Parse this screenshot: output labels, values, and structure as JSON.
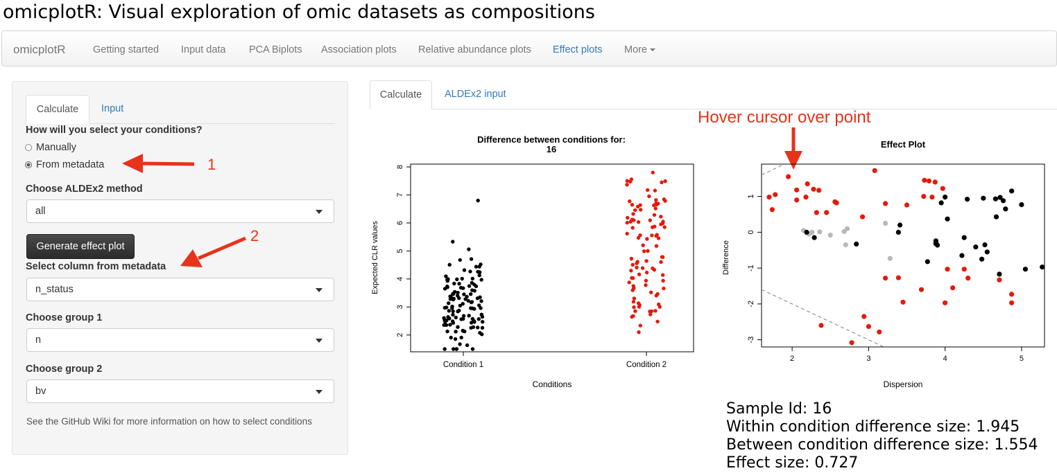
{
  "app": {
    "title": "omicplotR: Visual exploration of omic datasets as compositions"
  },
  "navbar": {
    "brand": "omicplotR",
    "items": [
      {
        "label": "Getting started"
      },
      {
        "label": "Input data"
      },
      {
        "label": "PCA Biplots"
      },
      {
        "label": "Association plots"
      },
      {
        "label": "Relative abundance plots"
      },
      {
        "label": "Effect plots",
        "active": true
      },
      {
        "label": "More"
      }
    ]
  },
  "sidebar": {
    "tabs": [
      {
        "label": "Calculate",
        "active": true
      },
      {
        "label": "Input"
      }
    ],
    "condition_question": "How will you select your conditions?",
    "radio_options": [
      {
        "label": "Manually",
        "checked": false
      },
      {
        "label": "From metadata",
        "checked": true
      }
    ],
    "method": {
      "label": "Choose ALDEx2 method",
      "value": "all"
    },
    "generate_button": "Generate effect plot",
    "metadata_column": {
      "label": "Select column from metadata",
      "value": "n_status"
    },
    "group1": {
      "label": "Choose group 1",
      "value": "n"
    },
    "group2": {
      "label": "Choose group 2",
      "value": "bv"
    },
    "help_text": "See the GitHub Wiki for more information on how to select conditions"
  },
  "main": {
    "tabs": [
      {
        "label": "Calculate",
        "active": true
      },
      {
        "label": "ALDEx2 input"
      }
    ]
  },
  "annotations": {
    "arrow1_label": "1",
    "arrow2_label": "2",
    "hover_note": "Hover cursor over point"
  },
  "colors": {
    "annotation_red": "#e8321a",
    "link_blue": "#337ab7",
    "condition2_red": "#e41a0c",
    "neutral_grey": "#b8b8b8"
  },
  "chart_data": [
    {
      "type": "scatter",
      "title": "Difference between conditions for:",
      "subtitle": "16",
      "xlabel": "Conditions",
      "ylabel": "Expected CLR values",
      "categories": [
        "Condition 1",
        "Condition 2"
      ],
      "ylim": [
        1.4,
        8.1
      ],
      "yticks": [
        2,
        3,
        4,
        5,
        6,
        7,
        8
      ],
      "series": [
        {
          "category": "Condition 1",
          "color": "#000000",
          "n_points": 120,
          "y_range": [
            1.5,
            6.8
          ]
        },
        {
          "category": "Condition 2",
          "color": "#e41a0c",
          "n_points": 100,
          "y_range": [
            2.1,
            7.8
          ]
        }
      ]
    },
    {
      "type": "scatter",
      "title": "Effect Plot",
      "xlabel": "Dispersion",
      "ylabel": "Difference",
      "xlim": [
        1.6,
        5.3
      ],
      "ylim": [
        -3.2,
        1.9
      ],
      "xticks": [
        2,
        3,
        4,
        5
      ],
      "yticks": [
        -3,
        -2,
        -1,
        0,
        1
      ],
      "reference_lines": "dashed y = x and y = -x",
      "series": [
        {
          "name": "red",
          "color": "#e41a0c",
          "points": [
            [
              1.95,
              1.55
            ],
            [
              3.08,
              1.72
            ],
            [
              3.73,
              1.45
            ],
            [
              3.79,
              1.43
            ],
            [
              3.87,
              1.4
            ],
            [
              3.97,
              1.22
            ],
            [
              2.2,
              1.35
            ],
            [
              2.28,
              1.2
            ],
            [
              2.35,
              1.17
            ],
            [
              2.06,
              1.18
            ],
            [
              1.78,
              1.05
            ],
            [
              1.7,
              0.98
            ],
            [
              2.18,
              0.98
            ],
            [
              2.06,
              0.9
            ],
            [
              2.56,
              0.85
            ],
            [
              2.58,
              0.82
            ],
            [
              3.22,
              0.8
            ],
            [
              3.5,
              0.76
            ],
            [
              3.72,
              1.0
            ],
            [
              3.83,
              0.98
            ],
            [
              1.74,
              0.63
            ],
            [
              2.45,
              0.55
            ],
            [
              2.32,
              0.55
            ],
            [
              2.92,
              0.43
            ],
            [
              4.25,
              -1.03
            ],
            [
              4.03,
              -1.03
            ],
            [
              4.3,
              -1.28
            ],
            [
              3.22,
              -1.28
            ],
            [
              3.39,
              -1.27
            ],
            [
              4.1,
              -1.55
            ],
            [
              3.69,
              -1.6
            ],
            [
              4.71,
              -1.33
            ],
            [
              4.87,
              -1.73
            ],
            [
              4.87,
              -1.97
            ],
            [
              4.0,
              -1.97
            ],
            [
              3.45,
              -1.95
            ],
            [
              2.94,
              -2.35
            ],
            [
              2.38,
              -2.6
            ],
            [
              3.0,
              -2.63
            ],
            [
              3.14,
              -2.78
            ],
            [
              2.78,
              -3.08
            ]
          ]
        },
        {
          "name": "black",
          "color": "#000000",
          "points": [
            [
              4.87,
              1.15
            ],
            [
              4.66,
              0.93
            ],
            [
              4.72,
              0.97
            ],
            [
              4.5,
              0.95
            ],
            [
              4.76,
              0.88
            ],
            [
              4.29,
              0.92
            ],
            [
              4.0,
              0.98
            ],
            [
              5.0,
              0.77
            ],
            [
              4.79,
              0.65
            ],
            [
              3.95,
              0.82
            ],
            [
              4.67,
              0.43
            ],
            [
              4.03,
              0.37
            ],
            [
              3.41,
              0.2
            ],
            [
              2.84,
              -0.33
            ],
            [
              2.29,
              -0.15
            ],
            [
              2.19,
              0.0
            ],
            [
              3.39,
              0.0
            ],
            [
              3.88,
              -0.24
            ],
            [
              3.88,
              -0.32
            ],
            [
              4.25,
              -0.15
            ],
            [
              4.4,
              -0.41
            ],
            [
              4.52,
              -0.35
            ],
            [
              4.55,
              -0.55
            ],
            [
              4.22,
              -0.65
            ],
            [
              4.48,
              -0.75
            ],
            [
              3.77,
              -0.82
            ],
            [
              5.05,
              -1.03
            ],
            [
              5.27,
              -0.97
            ],
            [
              4.71,
              -1.17
            ],
            [
              3.88,
              -0.29
            ],
            [
              3.9,
              -0.36
            ]
          ]
        },
        {
          "name": "grey",
          "color": "#b8b8b8",
          "points": [
            [
              2.15,
              0.05
            ],
            [
              2.22,
              -0.05
            ],
            [
              2.36,
              0.01
            ],
            [
              2.68,
              0.02
            ],
            [
              2.72,
              0.1
            ],
            [
              2.5,
              -0.08
            ],
            [
              2.7,
              -0.35
            ],
            [
              3.22,
              0.25
            ],
            [
              3.28,
              -0.73
            ],
            [
              2.26,
              0.0
            ]
          ]
        }
      ],
      "hovered_point": {
        "sample_id": "16",
        "x": 1.95,
        "y": 1.55
      }
    }
  ],
  "info": {
    "sample_id": "Sample Id: 16",
    "within": "Within condition difference size: 1.945",
    "between": "Between condition difference size: 1.554",
    "effect": "Effect size: 0.727"
  }
}
